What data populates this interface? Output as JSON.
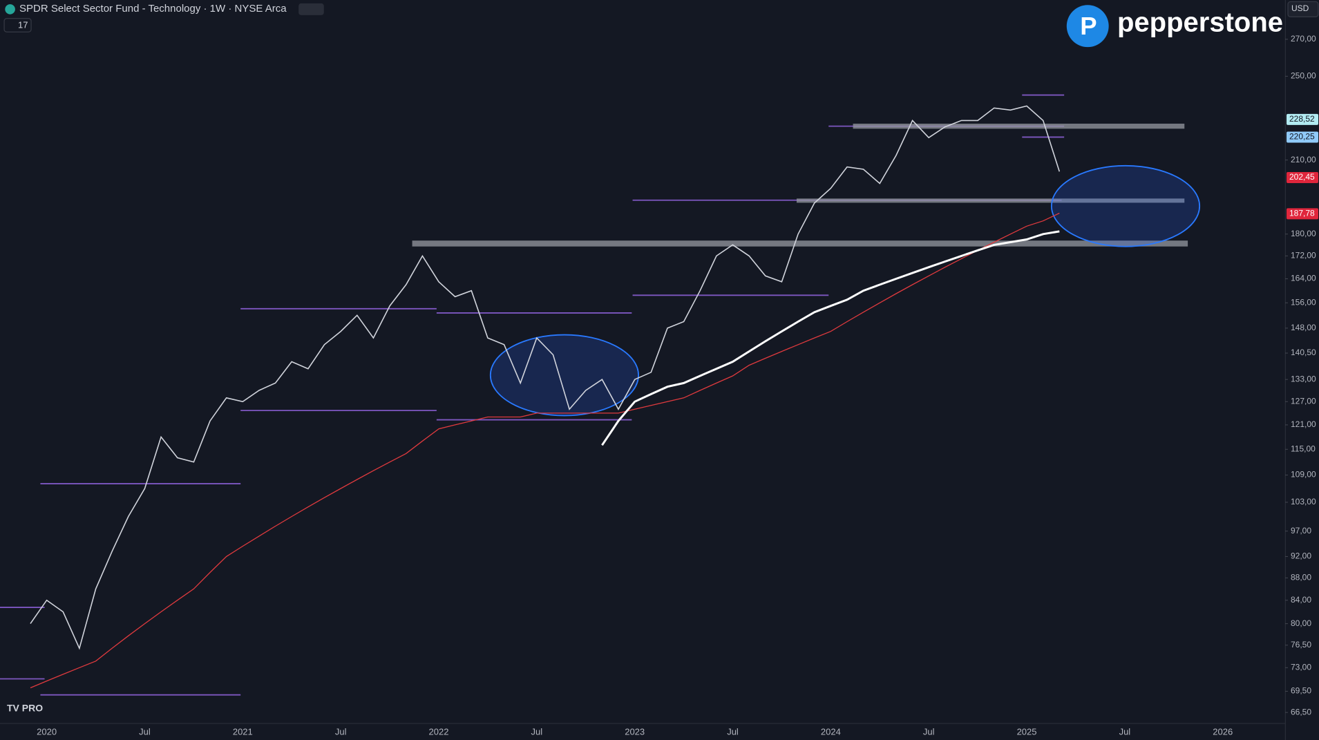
{
  "header": {
    "title": "SPDR Select Sector Fund - Technology · 1W · NYSE Arca",
    "interval_count": "17",
    "brand": "pepperstone",
    "currency": "USD",
    "badge": "TV PRO"
  },
  "chart_data": {
    "type": "line",
    "log_scale": true,
    "color": "#d1d4dc",
    "categories": [
      null,
      "2020",
      null,
      null,
      null,
      null,
      null,
      "Jul",
      null,
      null,
      null,
      null,
      null,
      "2021",
      null,
      null,
      null,
      null,
      null,
      "Jul",
      null,
      null,
      null,
      null,
      null,
      "2022",
      null,
      null,
      null,
      null,
      null,
      "Jul",
      null,
      null,
      null,
      null,
      null,
      "2023",
      null,
      null,
      null,
      null,
      null,
      "Jul",
      null,
      null,
      null,
      null,
      null,
      "2024",
      null,
      null,
      null,
      null,
      null,
      "Jul",
      null,
      null,
      null,
      null,
      null,
      "2025",
      null,
      null,
      null,
      null,
      null,
      "Jul",
      null,
      null,
      null,
      null,
      null,
      "2026",
      null,
      null,
      null
    ],
    "values": [
      80,
      84,
      82,
      76,
      86,
      93,
      100,
      106,
      118,
      113,
      112,
      122,
      128,
      127,
      130,
      132,
      138,
      136,
      143,
      147,
      152,
      145,
      155,
      162,
      172,
      163,
      158,
      160,
      145,
      143,
      132,
      145,
      140,
      125,
      130,
      133,
      125,
      133,
      135,
      148,
      150,
      160,
      172,
      176,
      172,
      165,
      163,
      180,
      192,
      198,
      207,
      206,
      200,
      212,
      228,
      220,
      225,
      228,
      228,
      234,
      233,
      235,
      228,
      205,
      null,
      null,
      null,
      null,
      null,
      null,
      null,
      null,
      null,
      null,
      null,
      null,
      null
    ],
    "overlays": [
      {
        "color": "#e03a3e",
        "values": [
          70,
          71,
          72,
          73,
          74,
          76,
          78,
          80,
          82,
          84,
          86,
          89,
          92,
          94,
          96,
          98,
          100,
          102,
          104,
          106,
          108,
          110,
          112,
          114,
          117,
          120,
          121,
          122,
          123,
          123,
          123,
          124,
          124,
          124,
          124,
          124,
          124,
          125,
          126,
          127,
          128,
          130,
          132,
          134,
          137,
          139,
          141,
          143,
          145,
          147,
          150,
          153,
          156,
          159,
          162,
          165,
          168,
          171,
          174,
          177,
          180,
          183,
          185,
          188,
          null,
          null,
          null,
          null,
          null,
          null,
          null,
          null,
          null,
          null,
          null,
          null,
          null
        ]
      },
      {
        "color": "#ffffff",
        "values": [
          null,
          null,
          null,
          null,
          null,
          null,
          null,
          null,
          null,
          null,
          null,
          null,
          null,
          null,
          null,
          null,
          null,
          null,
          null,
          null,
          null,
          null,
          null,
          null,
          null,
          null,
          null,
          null,
          null,
          null,
          null,
          null,
          null,
          null,
          null,
          116,
          122,
          127,
          129,
          131,
          132,
          134,
          136,
          138,
          141,
          144,
          147,
          150,
          153,
          155,
          157,
          160,
          162,
          164,
          166,
          168,
          170,
          172,
          174,
          176,
          177,
          178,
          180,
          181,
          null,
          null,
          null,
          null,
          null,
          null,
          null,
          null,
          null,
          null,
          null,
          null,
          null
        ]
      }
    ],
    "ylim": [
      65,
      293
    ],
    "yticks": [
      {
        "value": 66.5,
        "label": "66,50"
      },
      {
        "value": 69.5,
        "label": "69,50"
      },
      {
        "value": 73,
        "label": "73,00"
      },
      {
        "value": 76.5,
        "label": "76,50"
      },
      {
        "value": 80,
        "label": "80,00"
      },
      {
        "value": 84,
        "label": "84,00"
      },
      {
        "value": 88,
        "label": "88,00"
      },
      {
        "value": 92,
        "label": "92,00"
      },
      {
        "value": 97,
        "label": "97,00"
      },
      {
        "value": 103,
        "label": "103,00"
      },
      {
        "value": 109,
        "label": "109,00"
      },
      {
        "value": 115,
        "label": "115,00"
      },
      {
        "value": 121,
        "label": "121,00"
      },
      {
        "value": 127,
        "label": "127,00"
      },
      {
        "value": 133,
        "label": "133,00"
      },
      {
        "value": 140.5,
        "label": "140,50"
      },
      {
        "value": 148,
        "label": "148,00"
      },
      {
        "value": 156,
        "label": "156,00"
      },
      {
        "value": 164,
        "label": "164,00"
      },
      {
        "value": 172,
        "label": "172,00"
      },
      {
        "value": 180,
        "label": "180,00"
      },
      {
        "value": 210,
        "label": "210,00"
      },
      {
        "value": 250,
        "label": "250,00"
      },
      {
        "value": 270,
        "label": "270,00"
      }
    ],
    "price_labels": [
      {
        "value": 228.52,
        "label": "228,52",
        "color": "#b2ebf2"
      },
      {
        "value": 220.25,
        "label": "220,25",
        "color": "#90caf9"
      },
      {
        "value": 202.45,
        "label": "202,45",
        "color": "#e0263c"
      },
      {
        "value": 187.78,
        "label": "187,78",
        "color": "#e0263c"
      }
    ]
  }
}
